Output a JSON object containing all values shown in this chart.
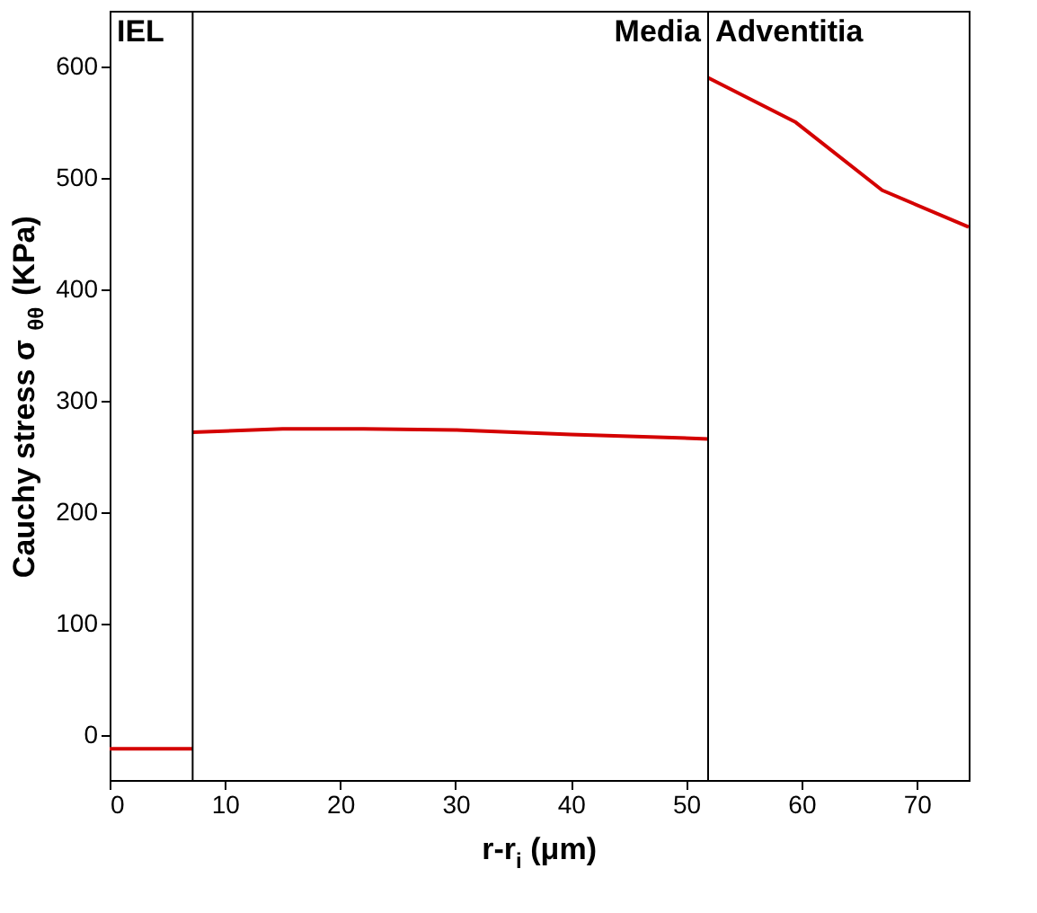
{
  "chart_data": {
    "type": "line",
    "xlabel": "r-r$_{i}$ (μm)",
    "ylabel": "Cauchy stress σ$_{θθ}$ (KPa)",
    "xlim": [
      0,
      74.5
    ],
    "ylim": [
      -40,
      650
    ],
    "xticks": [
      0,
      10,
      20,
      30,
      40,
      50,
      60,
      70
    ],
    "yticks": [
      0,
      100,
      200,
      300,
      400,
      500,
      600
    ],
    "marker": "none",
    "line_style": "solid",
    "series": [
      {
        "color": "#d40000",
        "x": [
          0,
          7.2
        ],
        "values": [
          -12,
          -12
        ]
      },
      {
        "color": "#d40000",
        "x": [
          7.2,
          15,
          22,
          30,
          40,
          51.9
        ],
        "values": [
          272,
          275,
          275,
          274,
          270,
          266
        ]
      },
      {
        "color": "#d40000",
        "x": [
          51.9,
          59.5,
          67,
          74.5
        ],
        "values": [
          590,
          550,
          489,
          456
        ]
      }
    ],
    "ref_lines": [
      {
        "axis": "x",
        "value": 7.2,
        "color": "#000000"
      },
      {
        "axis": "x",
        "value": 51.9,
        "color": "#000000"
      }
    ],
    "annotations": [
      "IEL",
      "Media",
      "Adventitia"
    ]
  }
}
